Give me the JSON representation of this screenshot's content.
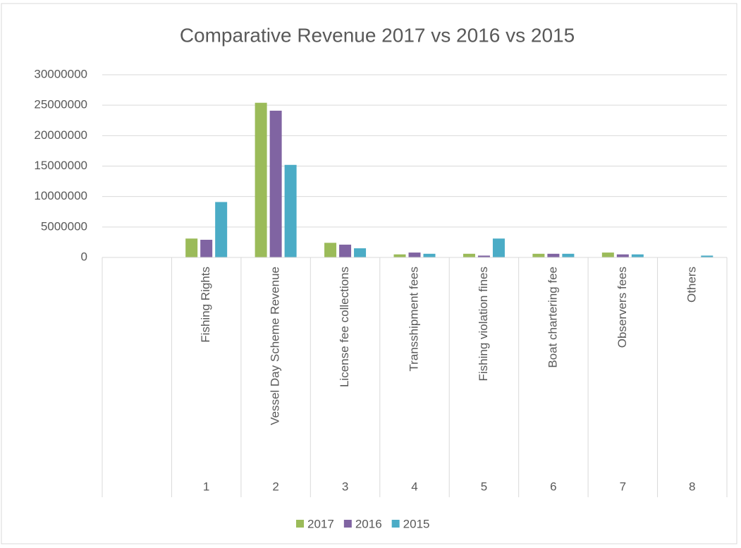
{
  "chart_data": {
    "type": "bar",
    "title": "Comparative Revenue 2017 vs 2016 vs 2015",
    "categories": [
      null,
      "Fishing Rights",
      "Vessel Day Scheme Revenue",
      "License fee collections",
      "Transshipment fees",
      "Fishing violation fines",
      "Boat chartering fee",
      "Observers fees",
      "Others"
    ],
    "category_groups": [
      null,
      "1",
      "2",
      "3",
      "4",
      "5",
      "6",
      "7",
      "8"
    ],
    "series": [
      {
        "name": "2017",
        "color": "#9bbb59",
        "values": [
          null,
          3100000,
          25400000,
          2400000,
          500000,
          600000,
          600000,
          800000,
          0
        ]
      },
      {
        "name": "2016",
        "color": "#8064a2",
        "values": [
          null,
          2900000,
          24100000,
          2100000,
          800000,
          300000,
          600000,
          500000,
          0
        ]
      },
      {
        "name": "2015",
        "color": "#4bacc6",
        "values": [
          null,
          9100000,
          15200000,
          1500000,
          600000,
          3100000,
          600000,
          500000,
          300000
        ]
      }
    ],
    "ylim": [
      0,
      30000000
    ],
    "yticks": [
      0,
      5000000,
      10000000,
      15000000,
      20000000,
      25000000,
      30000000
    ],
    "grid": true,
    "legend": "bottom"
  }
}
